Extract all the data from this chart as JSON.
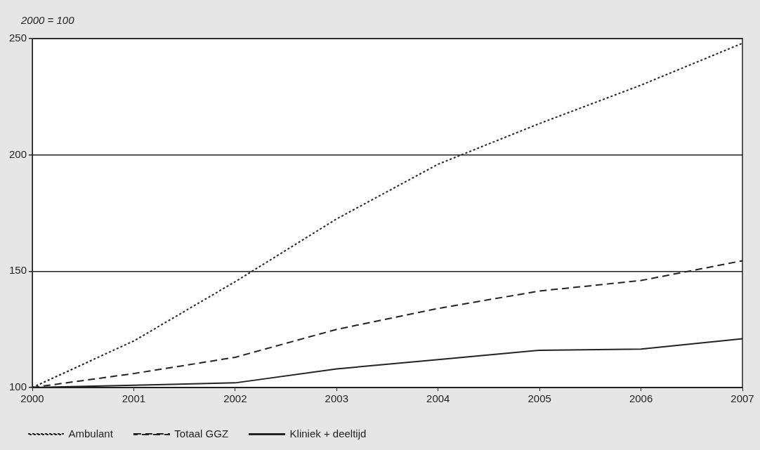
{
  "chart_data": {
    "type": "line",
    "ylabel": "2000 = 100",
    "x": [
      2000,
      2001,
      2002,
      2003,
      2004,
      2005,
      2006,
      2007
    ],
    "series": [
      {
        "name": "Ambulant",
        "color": "#222222",
        "line_style": "dotted",
        "values": [
          100,
          120,
          145.5,
          172.5,
          196,
          213.5,
          230,
          248
        ]
      },
      {
        "name": "Totaal GGZ",
        "color": "#222222",
        "line_style": "dashed",
        "values": [
          100,
          106,
          113,
          125,
          134,
          141.5,
          146,
          154.5
        ]
      },
      {
        "name": "Kliniek + deeltijd",
        "color": "#222222",
        "line_style": "solid",
        "values": [
          100,
          101,
          102,
          108,
          112,
          116,
          116.5,
          121
        ]
      }
    ],
    "xlim": [
      2000,
      2007
    ],
    "xticks": [
      2000,
      2001,
      2002,
      2003,
      2004,
      2005,
      2006,
      2007
    ],
    "ylim": [
      100,
      250
    ],
    "yticks": [
      100,
      150,
      200,
      250
    ],
    "grid": "y",
    "legend": "bottom left",
    "marker": "none"
  }
}
